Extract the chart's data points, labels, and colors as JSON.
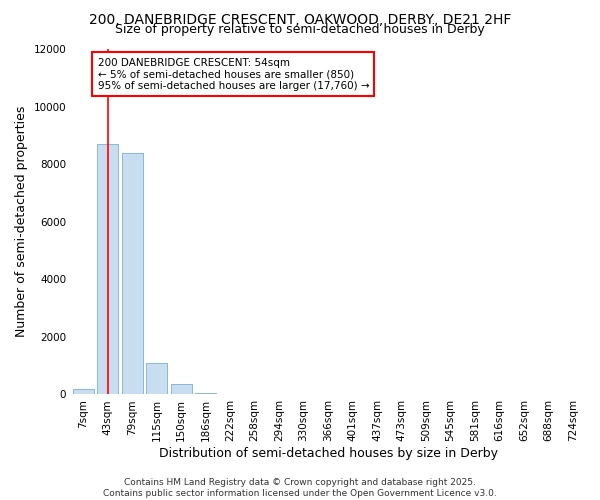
{
  "title": "200, DANEBRIDGE CRESCENT, OAKWOOD, DERBY, DE21 2HF",
  "subtitle": "Size of property relative to semi-detached houses in Derby",
  "xlabel": "Distribution of semi-detached houses by size in Derby",
  "ylabel": "Number of semi-detached properties",
  "bin_labels": [
    "7sqm",
    "43sqm",
    "79sqm",
    "115sqm",
    "150sqm",
    "186sqm",
    "222sqm",
    "258sqm",
    "294sqm",
    "330sqm",
    "366sqm",
    "401sqm",
    "437sqm",
    "473sqm",
    "509sqm",
    "545sqm",
    "581sqm",
    "616sqm",
    "652sqm",
    "688sqm",
    "724sqm"
  ],
  "bar_heights": [
    200,
    8700,
    8400,
    1100,
    350,
    60,
    20,
    10,
    5,
    2,
    1,
    1,
    0,
    0,
    0,
    0,
    0,
    0,
    0,
    0,
    0
  ],
  "bar_color": "#c8ddf0",
  "bar_edge_color": "#7aafd4",
  "red_line_x": 1.0,
  "annotation_text": "200 DANEBRIDGE CRESCENT: 54sqm\n← 5% of semi-detached houses are smaller (850)\n95% of semi-detached houses are larger (17,760) →",
  "annotation_box_color": "white",
  "annotation_box_edge_color": "red",
  "ylim": [
    0,
    12000
  ],
  "yticks": [
    0,
    2000,
    4000,
    6000,
    8000,
    10000,
    12000
  ],
  "footer": "Contains HM Land Registry data © Crown copyright and database right 2025.\nContains public sector information licensed under the Open Government Licence v3.0.",
  "background_color": "#ffffff",
  "title_fontsize": 10,
  "subtitle_fontsize": 9,
  "footer_fontsize": 6.5,
  "axis_label_fontsize": 9,
  "tick_fontsize": 7.5
}
